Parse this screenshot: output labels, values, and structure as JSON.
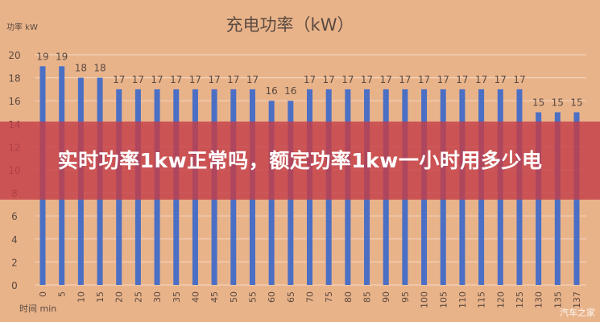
{
  "chart_data": {
    "type": "bar",
    "title": "充电功率（kW）",
    "ylabel": "功率 kW",
    "xlabel": "时间 min",
    "ylim": [
      0,
      20
    ],
    "yticks": [
      "0",
      "2",
      "4",
      "6",
      "8",
      "10",
      "12",
      "14",
      "16",
      "18",
      "20"
    ],
    "grid": true,
    "bar_color": "#4a6fc4",
    "categories": [
      "0",
      "5",
      "10",
      "15",
      "20",
      "25",
      "30",
      "35",
      "40",
      "45",
      "50",
      "55",
      "60",
      "65",
      "70",
      "75",
      "80",
      "85",
      "90",
      "95",
      "100",
      "105",
      "110",
      "115",
      "120",
      "125",
      "130",
      "135",
      "137"
    ],
    "values": [
      19,
      19,
      18,
      18,
      17,
      17,
      17,
      17,
      17,
      17,
      17,
      17,
      16,
      16,
      17,
      17,
      17,
      17,
      17,
      17,
      17,
      17,
      17,
      17,
      17,
      17,
      15,
      15,
      15
    ]
  },
  "banner": {
    "text": "实时功率1kw正常吗，额定功率1kw一小时用多少电"
  },
  "watermark": "汽车之家"
}
